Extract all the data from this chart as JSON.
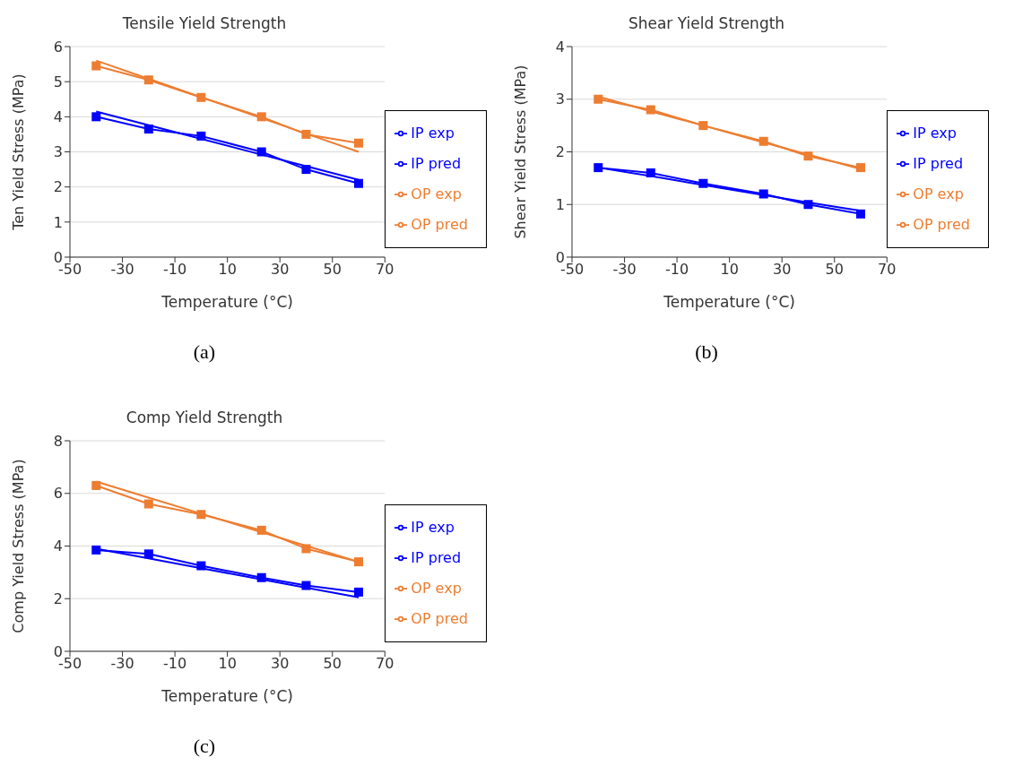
{
  "chart_data": [
    {
      "type": "line",
      "title": "Tensile Yield Strength",
      "xlabel": "Temperature (°C)",
      "ylabel": "Ten Yield Stress (MPa)",
      "annotations": [
        "(a)"
      ],
      "x": [
        -40,
        -20,
        0,
        23,
        40,
        60
      ],
      "xlim": [
        -50,
        70
      ],
      "xticks": [
        -50,
        -30,
        -10,
        10,
        30,
        50,
        70
      ],
      "ylim": [
        0,
        6
      ],
      "yticks": [
        0,
        1,
        2,
        3,
        4,
        5,
        6
      ],
      "grid": "y",
      "legend": "right",
      "marker": "square",
      "series": [
        {
          "name": "IP exp",
          "color": "#0000ff",
          "values": [
            4.0,
            3.65,
            3.45,
            3.0,
            2.5,
            2.1
          ]
        },
        {
          "name": "IP pred",
          "color": "#0000ff",
          "marker": "none",
          "values": [
            4.15,
            3.76,
            3.37,
            2.92,
            2.59,
            2.2
          ]
        },
        {
          "name": "OP exp",
          "color": "#ed7d31",
          "values": [
            5.45,
            5.05,
            4.55,
            4.0,
            3.5,
            3.25
          ]
        },
        {
          "name": "OP pred",
          "color": "#ed7d31",
          "marker": "none",
          "values": [
            5.6,
            5.08,
            4.56,
            3.96,
            3.52,
            3.0
          ]
        }
      ]
    },
    {
      "type": "line",
      "title": "Shear Yield Strength",
      "xlabel": "Temperature (°C)",
      "ylabel": "Shear Yield Stress (MPa)",
      "annotations": [
        "(b)"
      ],
      "x": [
        -40,
        -20,
        0,
        23,
        40,
        60
      ],
      "xlim": [
        -50,
        70
      ],
      "xticks": [
        -50,
        -30,
        -10,
        10,
        30,
        50,
        70
      ],
      "ylim": [
        0,
        4
      ],
      "yticks": [
        0,
        1,
        2,
        3,
        4
      ],
      "grid": "y",
      "legend": "right",
      "marker": "square",
      "series": [
        {
          "name": "IP exp",
          "color": "#0000ff",
          "values": [
            1.7,
            1.6,
            1.4,
            1.2,
            1.0,
            0.82
          ]
        },
        {
          "name": "IP pred",
          "color": "#0000ff",
          "marker": "none",
          "values": [
            1.7,
            1.54,
            1.37,
            1.18,
            1.04,
            0.88
          ]
        },
        {
          "name": "OP exp",
          "color": "#ed7d31",
          "values": [
            3.0,
            2.8,
            2.5,
            2.2,
            1.92,
            1.7
          ]
        },
        {
          "name": "OP pred",
          "color": "#ed7d31",
          "marker": "none",
          "values": [
            3.05,
            2.77,
            2.5,
            2.18,
            1.95,
            1.67
          ]
        }
      ]
    },
    {
      "type": "line",
      "title": "Comp Yield Strength",
      "xlabel": "Temperature (°C)",
      "ylabel": "Comp Yield Stress (MPa)",
      "annotations": [
        "(c)"
      ],
      "x": [
        -40,
        -20,
        0,
        23,
        40,
        60
      ],
      "xlim": [
        -50,
        70
      ],
      "xticks": [
        -50,
        -30,
        -10,
        10,
        30,
        50,
        70
      ],
      "ylim": [
        0,
        8
      ],
      "yticks": [
        0,
        2,
        4,
        6,
        8
      ],
      "grid": "y",
      "legend": "right",
      "marker": "square",
      "series": [
        {
          "name": "IP exp",
          "color": "#0000ff",
          "values": [
            3.85,
            3.7,
            3.25,
            2.8,
            2.5,
            2.25
          ]
        },
        {
          "name": "IP pred",
          "color": "#0000ff",
          "marker": "none",
          "values": [
            3.9,
            3.53,
            3.16,
            2.73,
            2.42,
            2.05
          ]
        },
        {
          "name": "OP exp",
          "color": "#ed7d31",
          "values": [
            6.3,
            5.6,
            5.2,
            4.6,
            3.9,
            3.4
          ]
        },
        {
          "name": "OP pred",
          "color": "#ed7d31",
          "marker": "none",
          "values": [
            6.45,
            5.84,
            5.23,
            4.53,
            4.01,
            3.4
          ]
        }
      ]
    }
  ]
}
